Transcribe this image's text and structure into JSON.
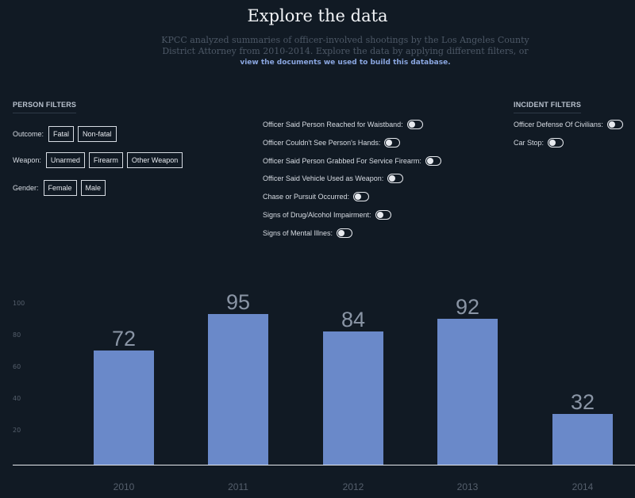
{
  "header": {
    "title": "Explore the data",
    "intro": "KPCC analyzed summaries of officer-involved shootings by the Los Angeles County District Attorney from 2010-2014. Explore the data by applying different filters, or",
    "link": "view the documents we used to build this database."
  },
  "person_filters": {
    "title": "PERSON FILTERS",
    "outcome_label": "Outcome:",
    "outcome_options": [
      "Fatal",
      "Non-fatal"
    ],
    "weapon_label": "Weapon:",
    "weapon_options": [
      "Unarmed",
      "Firearm",
      "Other Weapon"
    ],
    "gender_label": "Gender:",
    "gender_options": [
      "Female",
      "Male"
    ]
  },
  "officer_toggles": [
    "Officer Said Person Reached for Waistband:",
    "Officer Couldn't See Person's Hands:",
    "Officer Said Person Grabbed For Service Firearm:",
    "Officer Said Vehicle Used as Weapon:",
    "Chase or Pursuit Occurred:",
    "Signs of Drug/Alcohol Impairment:",
    "Signs of Mental Illnes:"
  ],
  "incident_filters": {
    "title": "INCIDENT FILTERS",
    "toggles": [
      "Officer Defense Of Civilians:",
      "Car Stop:"
    ]
  },
  "colors": {
    "background": "#111a24",
    "bar": "#6a89c9",
    "bar_label": "#8a95a5",
    "axis_text": "#555f6c"
  },
  "chart_data": {
    "type": "bar",
    "categories": [
      "2010",
      "2011",
      "2012",
      "2013",
      "2014"
    ],
    "values": [
      72,
      95,
      84,
      92,
      32
    ],
    "title": "",
    "xlabel": "",
    "ylabel": "",
    "ylim": [
      0,
      100
    ],
    "yticks": [
      "20",
      "40",
      "60",
      "80",
      "100"
    ],
    "grid": false,
    "data_labels": true
  }
}
